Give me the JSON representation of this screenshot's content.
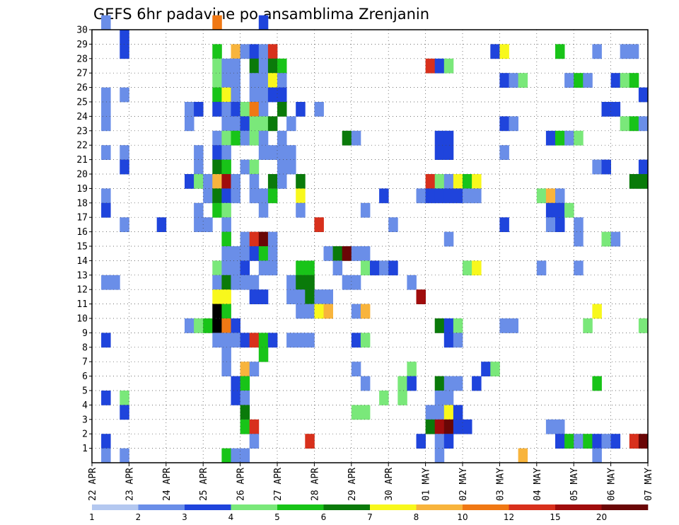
{
  "chart_data": {
    "type": "heatmap",
    "title": "GEFS 6hr padavine po ansamblima Zrenjanin",
    "xlabel": "",
    "ylabel": "",
    "x_ticks": [
      "22 APR",
      "23 APR",
      "24 APR",
      "25 APR",
      "26 APR",
      "27 APR",
      "28 APR",
      "29 APR",
      "30 APR",
      "01 MAY",
      "02 MAY",
      "03 MAY",
      "04 MAY",
      "05 MAY",
      "06 MAY",
      "07 MAY"
    ],
    "y_ticks": [
      "1",
      "2",
      "3",
      "4",
      "5",
      "6",
      "7",
      "8",
      "9",
      "10",
      "11",
      "12",
      "13",
      "14",
      "15",
      "16",
      "17",
      "18",
      "19",
      "20",
      "21",
      "22",
      "23",
      "24",
      "25",
      "26",
      "27",
      "28",
      "29",
      "30"
    ],
    "x_unit": "6h steps from 22 APR 00Z",
    "xlim": [
      0,
      60
    ],
    "ylim": [
      0,
      30
    ],
    "grid": true,
    "colorbar": {
      "labels": [
        "1",
        "2",
        "3",
        "4",
        "5",
        "6",
        "7",
        "8",
        "10",
        "12",
        "15",
        "20"
      ],
      "colors": [
        "#b4c8f0",
        "#6a8ee8",
        "#1f44dc",
        "#7ae87a",
        "#18c418",
        "#0a7a0a",
        "#f8f81c",
        "#f8b43c",
        "#f07814",
        "#d8301c",
        "#a00c0c",
        "#6a0606"
      ]
    },
    "cells": [
      [
        1,
        30,
        1
      ],
      [
        1,
        25,
        1
      ],
      [
        1,
        24,
        1
      ],
      [
        1,
        23,
        1
      ],
      [
        1,
        21,
        1
      ],
      [
        1,
        18,
        1
      ],
      [
        1,
        17,
        2
      ],
      [
        1,
        12,
        1
      ],
      [
        1,
        8,
        2
      ],
      [
        1,
        4,
        2
      ],
      [
        1,
        1,
        2
      ],
      [
        1,
        0,
        1
      ],
      [
        2,
        12,
        1
      ],
      [
        3,
        29,
        2
      ],
      [
        3,
        28,
        2
      ],
      [
        3,
        25,
        1
      ],
      [
        3,
        21,
        1
      ],
      [
        3,
        20,
        2
      ],
      [
        3,
        16,
        1
      ],
      [
        3,
        4,
        3
      ],
      [
        3,
        3,
        2
      ],
      [
        3,
        0,
        1
      ],
      [
        7,
        16,
        2
      ],
      [
        10,
        24,
        1
      ],
      [
        10,
        23,
        1
      ],
      [
        10,
        19,
        2
      ],
      [
        10,
        9,
        1
      ],
      [
        11,
        24,
        2
      ],
      [
        11,
        21,
        1
      ],
      [
        11,
        20,
        1
      ],
      [
        11,
        19,
        3
      ],
      [
        11,
        17,
        1
      ],
      [
        11,
        16,
        1
      ],
      [
        11,
        9,
        3
      ],
      [
        12,
        19,
        1
      ],
      [
        12,
        18,
        1
      ],
      [
        12,
        16,
        1
      ],
      [
        12,
        9,
        4
      ],
      [
        13,
        30,
        8
      ],
      [
        13,
        28,
        4
      ],
      [
        13,
        27,
        3
      ],
      [
        13,
        26,
        3
      ],
      [
        13,
        25,
        4
      ],
      [
        13,
        24,
        2
      ],
      [
        13,
        22,
        1
      ],
      [
        13,
        21,
        2
      ],
      [
        13,
        20,
        5
      ],
      [
        13,
        19,
        7
      ],
      [
        13,
        18,
        5
      ],
      [
        13,
        17,
        4
      ],
      [
        13,
        13,
        3
      ],
      [
        13,
        12,
        1
      ],
      [
        13,
        11,
        6
      ],
      [
        13,
        10,
        12
      ],
      [
        13,
        9,
        12
      ],
      [
        13,
        8,
        1
      ],
      [
        14,
        27,
        1
      ],
      [
        14,
        26,
        1
      ],
      [
        14,
        25,
        6
      ],
      [
        14,
        24,
        1
      ],
      [
        14,
        23,
        1
      ],
      [
        14,
        22,
        3
      ],
      [
        14,
        21,
        1
      ],
      [
        14,
        20,
        4
      ],
      [
        14,
        19,
        10
      ],
      [
        14,
        18,
        2
      ],
      [
        14,
        17,
        3
      ],
      [
        14,
        16,
        1
      ],
      [
        14,
        15,
        4
      ],
      [
        14,
        14,
        1
      ],
      [
        14,
        13,
        1
      ],
      [
        14,
        12,
        5
      ],
      [
        14,
        11,
        6
      ],
      [
        14,
        10,
        4
      ],
      [
        14,
        9,
        8
      ],
      [
        14,
        8,
        1
      ],
      [
        14,
        7,
        1
      ],
      [
        14,
        6,
        1
      ],
      [
        14,
        0,
        4
      ],
      [
        15,
        28,
        7
      ],
      [
        15,
        27,
        1
      ],
      [
        15,
        26,
        1
      ],
      [
        15,
        25,
        1
      ],
      [
        15,
        24,
        2
      ],
      [
        15,
        23,
        1
      ],
      [
        15,
        22,
        4
      ],
      [
        15,
        19,
        1
      ],
      [
        15,
        18,
        1
      ],
      [
        15,
        14,
        1
      ],
      [
        15,
        13,
        1
      ],
      [
        15,
        12,
        1
      ],
      [
        15,
        9,
        2
      ],
      [
        15,
        8,
        1
      ],
      [
        15,
        5,
        2
      ],
      [
        15,
        4,
        2
      ],
      [
        15,
        0,
        1
      ],
      [
        16,
        28,
        1
      ],
      [
        16,
        24,
        3
      ],
      [
        16,
        23,
        2
      ],
      [
        16,
        22,
        1
      ],
      [
        16,
        20,
        1
      ],
      [
        16,
        15,
        1
      ],
      [
        16,
        14,
        1
      ],
      [
        16,
        13,
        2
      ],
      [
        16,
        12,
        1
      ],
      [
        16,
        8,
        2
      ],
      [
        16,
        6,
        7
      ],
      [
        16,
        5,
        4
      ],
      [
        16,
        4,
        1
      ],
      [
        16,
        3,
        5
      ],
      [
        16,
        2,
        4
      ],
      [
        16,
        0,
        1
      ],
      [
        17,
        28,
        2
      ],
      [
        17,
        27,
        5
      ],
      [
        17,
        26,
        1
      ],
      [
        17,
        25,
        1
      ],
      [
        17,
        24,
        8
      ],
      [
        17,
        23,
        3
      ],
      [
        17,
        22,
        3
      ],
      [
        17,
        20,
        3
      ],
      [
        17,
        19,
        1
      ],
      [
        17,
        18,
        1
      ],
      [
        17,
        15,
        9
      ],
      [
        17,
        14,
        2
      ],
      [
        17,
        12,
        1
      ],
      [
        17,
        11,
        2
      ],
      [
        17,
        8,
        9
      ],
      [
        17,
        6,
        1
      ],
      [
        17,
        2,
        9
      ],
      [
        17,
        1,
        1
      ],
      [
        18,
        30,
        2
      ],
      [
        18,
        28,
        1
      ],
      [
        18,
        27,
        1
      ],
      [
        18,
        26,
        1
      ],
      [
        18,
        25,
        1
      ],
      [
        18,
        24,
        1
      ],
      [
        18,
        23,
        3
      ],
      [
        18,
        22,
        1
      ],
      [
        18,
        21,
        1
      ],
      [
        18,
        18,
        1
      ],
      [
        18,
        17,
        1
      ],
      [
        18,
        15,
        11
      ],
      [
        18,
        14,
        4
      ],
      [
        18,
        13,
        1
      ],
      [
        18,
        11,
        2
      ],
      [
        18,
        8,
        4
      ],
      [
        18,
        7,
        4
      ],
      [
        19,
        28,
        9
      ],
      [
        19,
        27,
        5
      ],
      [
        19,
        26,
        6
      ],
      [
        19,
        25,
        2
      ],
      [
        19,
        23,
        5
      ],
      [
        19,
        21,
        1
      ],
      [
        19,
        19,
        5
      ],
      [
        19,
        18,
        4
      ],
      [
        19,
        15,
        1
      ],
      [
        19,
        14,
        1
      ],
      [
        19,
        13,
        1
      ],
      [
        19,
        8,
        2
      ],
      [
        20,
        27,
        4
      ],
      [
        20,
        26,
        1
      ],
      [
        20,
        25,
        2
      ],
      [
        20,
        24,
        5
      ],
      [
        20,
        22,
        1
      ],
      [
        20,
        21,
        1
      ],
      [
        20,
        20,
        1
      ],
      [
        20,
        19,
        1
      ],
      [
        21,
        23,
        1
      ],
      [
        21,
        21,
        1
      ],
      [
        21,
        20,
        1
      ],
      [
        21,
        12,
        1
      ],
      [
        21,
        11,
        1
      ],
      [
        21,
        8,
        1
      ],
      [
        22,
        24,
        2
      ],
      [
        22,
        19,
        5
      ],
      [
        22,
        18,
        6
      ],
      [
        22,
        17,
        1
      ],
      [
        22,
        13,
        4
      ],
      [
        22,
        12,
        5
      ],
      [
        22,
        11,
        1
      ],
      [
        22,
        10,
        1
      ],
      [
        22,
        8,
        1
      ],
      [
        23,
        13,
        4
      ],
      [
        23,
        12,
        5
      ],
      [
        23,
        11,
        5
      ],
      [
        23,
        10,
        1
      ],
      [
        23,
        8,
        1
      ],
      [
        23,
        1,
        9
      ],
      [
        24,
        24,
        1
      ],
      [
        24,
        16,
        9
      ],
      [
        24,
        11,
        1
      ],
      [
        24,
        10,
        6
      ],
      [
        25,
        14,
        1
      ],
      [
        25,
        11,
        1
      ],
      [
        25,
        10,
        7
      ],
      [
        26,
        14,
        5
      ],
      [
        26,
        13,
        1
      ],
      [
        27,
        22,
        5
      ],
      [
        27,
        14,
        11
      ],
      [
        27,
        12,
        1
      ],
      [
        28,
        22,
        1
      ],
      [
        28,
        14,
        1
      ],
      [
        28,
        12,
        1
      ],
      [
        28,
        10,
        1
      ],
      [
        28,
        8,
        2
      ],
      [
        28,
        6,
        1
      ],
      [
        28,
        3,
        3
      ],
      [
        29,
        17,
        1
      ],
      [
        29,
        14,
        1
      ],
      [
        29,
        13,
        3
      ],
      [
        29,
        10,
        7
      ],
      [
        29,
        8,
        3
      ],
      [
        29,
        5,
        1
      ],
      [
        29,
        3,
        3
      ],
      [
        30,
        13,
        2
      ],
      [
        31,
        18,
        2
      ],
      [
        31,
        13,
        1
      ],
      [
        31,
        4,
        3
      ],
      [
        32,
        16,
        1
      ],
      [
        32,
        13,
        2
      ],
      [
        33,
        5,
        3
      ],
      [
        33,
        4,
        3
      ],
      [
        34,
        12,
        1
      ],
      [
        34,
        6,
        3
      ],
      [
        34,
        5,
        2
      ],
      [
        35,
        18,
        1
      ],
      [
        35,
        11,
        10
      ],
      [
        35,
        1,
        2
      ],
      [
        36,
        27,
        9
      ],
      [
        36,
        19,
        9
      ],
      [
        36,
        18,
        2
      ],
      [
        36,
        3,
        1
      ],
      [
        36,
        2,
        5
      ],
      [
        37,
        27,
        2
      ],
      [
        37,
        22,
        2
      ],
      [
        37,
        21,
        2
      ],
      [
        37,
        19,
        3
      ],
      [
        37,
        18,
        2
      ],
      [
        37,
        9,
        5
      ],
      [
        37,
        5,
        5
      ],
      [
        37,
        4,
        1
      ],
      [
        37,
        3,
        1
      ],
      [
        37,
        2,
        10
      ],
      [
        37,
        1,
        1
      ],
      [
        37,
        0,
        1
      ],
      [
        38,
        27,
        3
      ],
      [
        38,
        22,
        2
      ],
      [
        38,
        21,
        2
      ],
      [
        38,
        19,
        1
      ],
      [
        38,
        18,
        2
      ],
      [
        38,
        15,
        1
      ],
      [
        38,
        9,
        2
      ],
      [
        38,
        8,
        2
      ],
      [
        38,
        5,
        1
      ],
      [
        38,
        4,
        1
      ],
      [
        38,
        3,
        6
      ],
      [
        38,
        2,
        11
      ],
      [
        38,
        1,
        2
      ],
      [
        39,
        19,
        6
      ],
      [
        39,
        18,
        2
      ],
      [
        39,
        9,
        3
      ],
      [
        39,
        8,
        1
      ],
      [
        39,
        5,
        1
      ],
      [
        39,
        3,
        2
      ],
      [
        39,
        2,
        2
      ],
      [
        40,
        19,
        4
      ],
      [
        40,
        18,
        1
      ],
      [
        40,
        13,
        3
      ],
      [
        40,
        2,
        2
      ],
      [
        41,
        19,
        6
      ],
      [
        41,
        18,
        1
      ],
      [
        41,
        13,
        6
      ],
      [
        41,
        5,
        2
      ],
      [
        42,
        6,
        2
      ],
      [
        43,
        28,
        2
      ],
      [
        43,
        6,
        3
      ],
      [
        44,
        28,
        6
      ],
      [
        44,
        26,
        2
      ],
      [
        44,
        23,
        2
      ],
      [
        44,
        21,
        1
      ],
      [
        44,
        16,
        2
      ],
      [
        44,
        9,
        1
      ],
      [
        45,
        26,
        1
      ],
      [
        45,
        23,
        1
      ],
      [
        45,
        9,
        1
      ],
      [
        46,
        26,
        3
      ],
      [
        46,
        0,
        7
      ],
      [
        48,
        18,
        3
      ],
      [
        48,
        13,
        1
      ],
      [
        49,
        22,
        2
      ],
      [
        49,
        18,
        7
      ],
      [
        49,
        17,
        2
      ],
      [
        49,
        16,
        1
      ],
      [
        49,
        2,
        1
      ],
      [
        50,
        28,
        4
      ],
      [
        50,
        22,
        4
      ],
      [
        50,
        18,
        1
      ],
      [
        50,
        17,
        2
      ],
      [
        50,
        16,
        2
      ],
      [
        50,
        2,
        1
      ],
      [
        50,
        1,
        2
      ],
      [
        51,
        26,
        1
      ],
      [
        51,
        22,
        1
      ],
      [
        51,
        17,
        3
      ],
      [
        51,
        1,
        4
      ],
      [
        52,
        26,
        4
      ],
      [
        52,
        22,
        3
      ],
      [
        52,
        16,
        1
      ],
      [
        52,
        15,
        1
      ],
      [
        52,
        13,
        1
      ],
      [
        52,
        1,
        1
      ],
      [
        53,
        26,
        1
      ],
      [
        53,
        9,
        3
      ],
      [
        53,
        1,
        4
      ],
      [
        54,
        28,
        1
      ],
      [
        54,
        20,
        1
      ],
      [
        54,
        10,
        6
      ],
      [
        54,
        5,
        4
      ],
      [
        54,
        1,
        2
      ],
      [
        54,
        0,
        1
      ],
      [
        55,
        24,
        2
      ],
      [
        55,
        20,
        2
      ],
      [
        55,
        15,
        3
      ],
      [
        55,
        1,
        1
      ],
      [
        56,
        26,
        2
      ],
      [
        56,
        24,
        2
      ],
      [
        56,
        15,
        1
      ],
      [
        56,
        1,
        2
      ],
      [
        57,
        28,
        1
      ],
      [
        57,
        26,
        3
      ],
      [
        57,
        23,
        3
      ],
      [
        58,
        28,
        1
      ],
      [
        58,
        26,
        4
      ],
      [
        58,
        23,
        4
      ],
      [
        58,
        19,
        5
      ],
      [
        58,
        1,
        9
      ],
      [
        59,
        25,
        2
      ],
      [
        59,
        23,
        1
      ],
      [
        59,
        20,
        2
      ],
      [
        59,
        19,
        5
      ],
      [
        59,
        9,
        3
      ],
      [
        59,
        1,
        11
      ]
    ]
  }
}
